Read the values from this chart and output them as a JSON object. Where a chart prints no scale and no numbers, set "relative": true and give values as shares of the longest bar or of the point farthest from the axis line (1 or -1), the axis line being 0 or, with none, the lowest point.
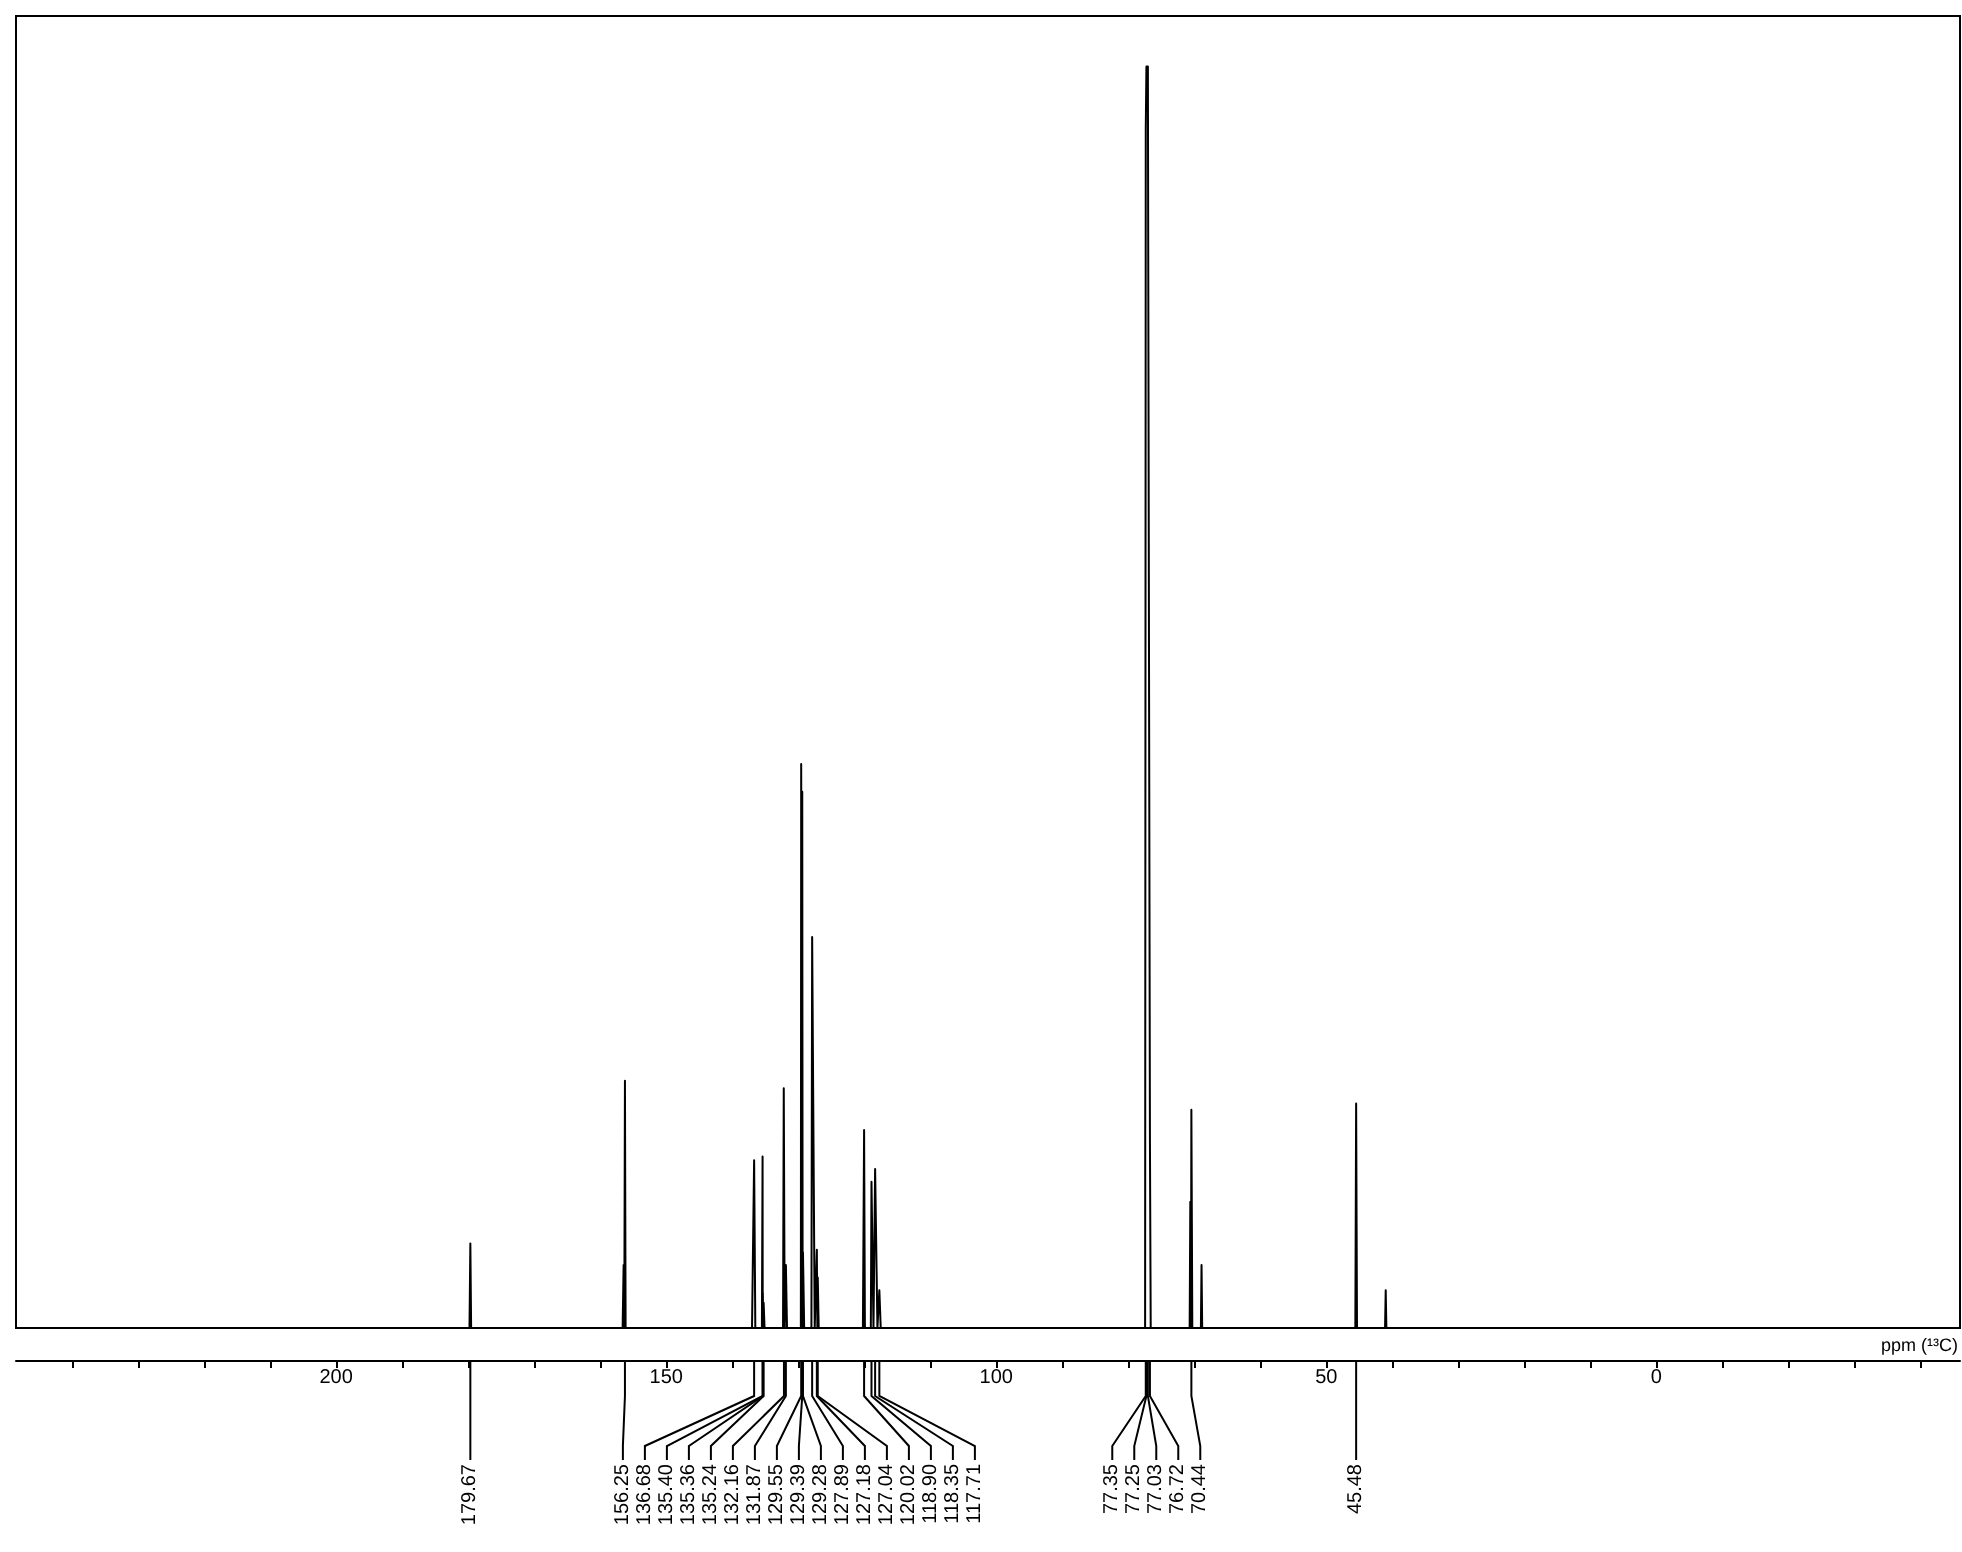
{
  "chart_data": {
    "type": "line",
    "relative": true,
    "xlabel": "ppm (¹³C)",
    "xlim": [
      248.5,
      -46
    ],
    "xticks": [
      200,
      150,
      100,
      50,
      0
    ],
    "grid": false,
    "marker": "none",
    "series": [
      {
        "color": "#000000",
        "x": [
          248.5,
          179.8,
          179.67,
          179.55,
          156.6,
          156.45,
          156.35,
          156.25,
          156.15,
          137.0,
          136.68,
          136.5,
          135.5,
          135.4,
          135.38,
          135.36,
          135.3,
          135.24,
          135.1,
          132.3,
          132.19,
          132.05,
          131.87,
          131.7,
          129.6,
          129.55,
          129.47,
          129.39,
          129.33,
          129.28,
          129.1,
          128.0,
          127.89,
          127.5,
          127.18,
          127.1,
          127.04,
          126.9,
          120.2,
          120.02,
          119.9,
          119.0,
          118.9,
          118.6,
          118.35,
          118.0,
          117.71,
          117.5,
          77.45,
          77.35,
          77.25,
          77.03,
          76.72,
          76.6,
          70.7,
          70.6,
          70.5,
          70.44,
          70.3,
          69.0,
          68.9,
          68.8,
          45.6,
          45.48,
          45.35,
          41.1,
          41.0,
          40.9,
          -46
        ],
        "values": [
          0,
          0,
          0.067,
          0,
          0,
          0.05,
          0,
          0.196,
          0,
          0,
          0.133,
          0,
          0,
          0.136,
          0,
          0.028,
          0,
          0.02,
          0,
          0,
          0.19,
          0,
          0.05,
          0,
          0,
          0.447,
          0,
          0.425,
          0,
          0.06,
          0,
          0,
          0.31,
          0,
          0.062,
          0,
          0.04,
          0,
          0,
          0.157,
          0,
          0,
          0.116,
          0,
          0.126,
          0,
          0.03,
          0,
          0,
          0.95,
          1,
          1,
          0.15,
          0,
          0,
          0.1,
          0,
          0.173,
          0,
          0,
          0.05,
          0,
          0,
          0.178,
          0,
          0,
          0.03,
          0,
          0
        ]
      }
    ],
    "annotations": [
      {
        "text": "179.67",
        "x": 179.67
      },
      {
        "text": "156.25",
        "x": 156.25
      },
      {
        "text": "136.68",
        "x": 136.68
      },
      {
        "text": "135.40",
        "x": 135.4
      },
      {
        "text": "135.36",
        "x": 135.36
      },
      {
        "text": "135.24",
        "x": 135.24
      },
      {
        "text": "132.16",
        "x": 132.16
      },
      {
        "text": "131.87",
        "x": 131.87
      },
      {
        "text": "129.55",
        "x": 129.55
      },
      {
        "text": "129.39",
        "x": 129.39
      },
      {
        "text": "129.28",
        "x": 129.28
      },
      {
        "text": "127.89",
        "x": 127.89
      },
      {
        "text": "127.18",
        "x": 127.18
      },
      {
        "text": "127.04",
        "x": 127.04
      },
      {
        "text": "120.02",
        "x": 120.02
      },
      {
        "text": "118.90",
        "x": 118.9
      },
      {
        "text": "118.35",
        "x": 118.35
      },
      {
        "text": "117.71",
        "x": 117.71
      },
      {
        "text": "77.35",
        "x": 77.35
      },
      {
        "text": "77.25",
        "x": 77.25
      },
      {
        "text": "77.03",
        "x": 77.03
      },
      {
        "text": "76.72",
        "x": 76.72
      },
      {
        "text": "70.44",
        "x": 70.44
      },
      {
        "text": "45.48",
        "x": 45.48
      }
    ]
  }
}
